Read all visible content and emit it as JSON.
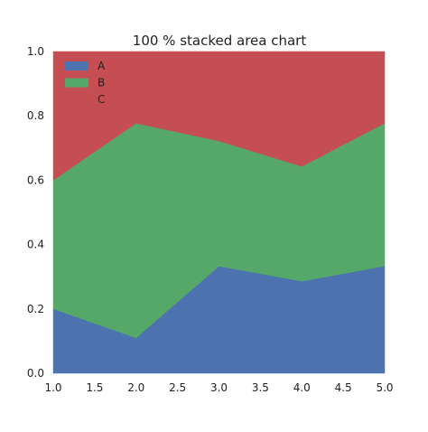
{
  "chart_data": {
    "type": "area",
    "stacked": "percent",
    "title": "100 % stacked area chart",
    "x": [
      1.0,
      2.0,
      3.0,
      4.0,
      5.0
    ],
    "series": [
      {
        "name": "A",
        "values": [
          0.2,
          0.11,
          0.333,
          0.286,
          0.333
        ],
        "color": "#4c72b0"
      },
      {
        "name": "B",
        "values": [
          0.4,
          0.667,
          0.389,
          0.357,
          0.444
        ],
        "color": "#55a868"
      },
      {
        "name": "C",
        "values": [
          0.4,
          0.222,
          0.278,
          0.357,
          0.222
        ],
        "color": "#c44e52"
      }
    ],
    "xlim": [
      1.0,
      5.0
    ],
    "ylim": [
      0.0,
      1.0
    ],
    "xticks": [
      1.0,
      1.5,
      2.0,
      2.5,
      3.0,
      3.5,
      4.0,
      4.5,
      5.0
    ],
    "xtick_labels": [
      "1.0",
      "1.5",
      "2.0",
      "2.5",
      "3.0",
      "3.5",
      "4.0",
      "4.5",
      "5.0"
    ],
    "yticks": [
      0.0,
      0.2,
      0.4,
      0.6,
      0.8,
      1.0
    ],
    "ytick_labels": [
      "0.0",
      "0.2",
      "0.4",
      "0.6",
      "0.8",
      "1.0"
    ],
    "grid": false,
    "legend_position": "top-left",
    "legend_swatch_shown": [
      true,
      true,
      false
    ]
  }
}
